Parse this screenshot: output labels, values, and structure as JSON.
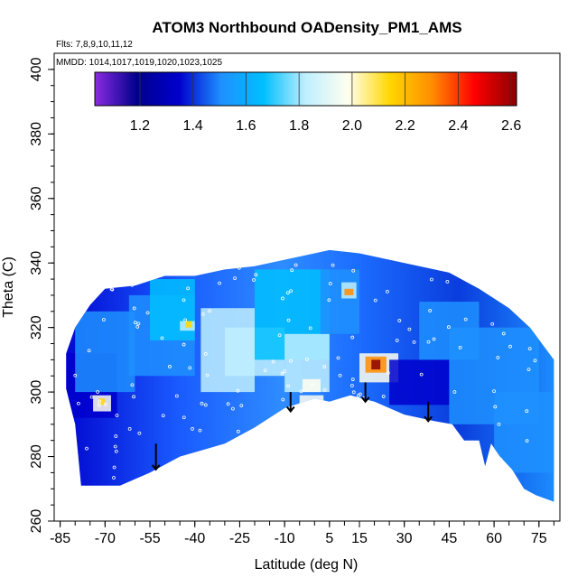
{
  "chart_data": {
    "type": "heatmap",
    "title": "ATOM3 Northbound OADensity_PM1_AMS",
    "flights_note": "Flts: 7,8,9,10,11,12",
    "dates_note": "MMDD: 1014,1017,1019,1020,1023,1025",
    "xlabel": "Latitude (deg N)",
    "ylabel": "Theta (C)",
    "xlim": [
      -87,
      82
    ],
    "ylim": [
      260,
      405
    ],
    "x_ticks": [
      -85,
      -70,
      -55,
      -40,
      -25,
      -10,
      5,
      15,
      30,
      45,
      60,
      75
    ],
    "y_ticks": [
      260,
      280,
      300,
      320,
      340,
      360,
      380,
      400
    ],
    "colorbar": {
      "range": [
        1.03,
        2.62
      ],
      "ticks": [
        1.2,
        1.4,
        1.6,
        1.8,
        2.0,
        2.2,
        2.4,
        2.6
      ],
      "colors": [
        "#8a2be2",
        "#00008b",
        "#0000cd",
        "#1e90ff",
        "#00bfff",
        "#bfefff",
        "#fffff0",
        "#ffd700",
        "#ff8c00",
        "#ff0000",
        "#8b0000"
      ]
    },
    "upper_boundary": [
      [
        -83,
        312
      ],
      [
        -80,
        320
      ],
      [
        -75,
        327
      ],
      [
        -70,
        332
      ],
      [
        -60,
        333
      ],
      [
        -50,
        336
      ],
      [
        -40,
        336
      ],
      [
        -30,
        338
      ],
      [
        -20,
        339
      ],
      [
        -10,
        341
      ],
      [
        0,
        343
      ],
      [
        5,
        344
      ],
      [
        15,
        343
      ],
      [
        25,
        341
      ],
      [
        35,
        339
      ],
      [
        45,
        337
      ],
      [
        55,
        332
      ],
      [
        65,
        326
      ],
      [
        72,
        320
      ],
      [
        76,
        315
      ],
      [
        80,
        310
      ]
    ],
    "lower_boundary": [
      [
        -83,
        301
      ],
      [
        -80,
        290
      ],
      [
        -78,
        271
      ],
      [
        -65,
        271
      ],
      [
        -55,
        275
      ],
      [
        -45,
        280
      ],
      [
        -30,
        284
      ],
      [
        -20,
        289
      ],
      [
        -10,
        295
      ],
      [
        0,
        298
      ],
      [
        5,
        297
      ],
      [
        12,
        299
      ],
      [
        20,
        297
      ],
      [
        30,
        293
      ],
      [
        40,
        291
      ],
      [
        46,
        290
      ],
      [
        50,
        285
      ],
      [
        55,
        285
      ],
      [
        57,
        277
      ],
      [
        59,
        284
      ],
      [
        62,
        280
      ],
      [
        66,
        276
      ],
      [
        70,
        270
      ],
      [
        74,
        268
      ],
      [
        80,
        266
      ]
    ],
    "cells": [
      {
        "x": [
          -84,
          -66
        ],
        "y": [
          292,
          312
        ],
        "value": 1.3
      },
      {
        "x": [
          -80,
          -60
        ],
        "y": [
          300,
          325
        ],
        "value": 1.55
      },
      {
        "x": [
          -74,
          -68
        ],
        "y": [
          294,
          299
        ],
        "value": 2.05
      },
      {
        "x": [
          -72,
          -70
        ],
        "y": [
          296,
          298
        ],
        "value": 2.2
      },
      {
        "x": [
          -62,
          -40
        ],
        "y": [
          305,
          330
        ],
        "value": 1.5
      },
      {
        "x": [
          -55,
          -40
        ],
        "y": [
          316,
          335
        ],
        "value": 1.6
      },
      {
        "x": [
          -45,
          -40
        ],
        "y": [
          319,
          322
        ],
        "value": 1.9
      },
      {
        "x": [
          -43,
          -41
        ],
        "y": [
          320,
          322
        ],
        "value": 2.15
      },
      {
        "x": [
          -38,
          -20
        ],
        "y": [
          300,
          326
        ],
        "value": 1.75
      },
      {
        "x": [
          -30,
          -10
        ],
        "y": [
          305,
          320
        ],
        "value": 1.85
      },
      {
        "x": [
          -20,
          5
        ],
        "y": [
          310,
          338
        ],
        "value": 1.6
      },
      {
        "x": [
          -10,
          5
        ],
        "y": [
          300,
          318
        ],
        "value": 1.85
      },
      {
        "x": [
          -4,
          2
        ],
        "y": [
          300,
          304
        ],
        "value": 2.0
      },
      {
        "x": [
          -5,
          3
        ],
        "y": [
          296,
          299
        ],
        "value": 1.95
      },
      {
        "x": [
          2,
          15
        ],
        "y": [
          318,
          338
        ],
        "value": 1.45
      },
      {
        "x": [
          9,
          14
        ],
        "y": [
          329,
          334
        ],
        "value": 1.9
      },
      {
        "x": [
          10,
          13
        ],
        "y": [
          330,
          332
        ],
        "value": 2.25
      },
      {
        "x": [
          15,
          28
        ],
        "y": [
          303,
          312
        ],
        "value": 1.95
      },
      {
        "x": [
          17,
          24
        ],
        "y": [
          306,
          311
        ],
        "value": 2.25
      },
      {
        "x": [
          19,
          22
        ],
        "y": [
          307,
          310
        ],
        "value": 2.55
      },
      {
        "x": [
          25,
          45
        ],
        "y": [
          296,
          310
        ],
        "value": 1.35
      },
      {
        "x": [
          35,
          55
        ],
        "y": [
          310,
          328
        ],
        "value": 1.5
      },
      {
        "x": [
          45,
          75
        ],
        "y": [
          290,
          320
        ],
        "value": 1.45
      },
      {
        "x": [
          60,
          80
        ],
        "y": [
          275,
          300
        ],
        "value": 1.55
      }
    ],
    "arrows": [
      {
        "x": -53,
        "y_top": 284,
        "y_bottom": 276
      },
      {
        "x": -8,
        "y_top": 300,
        "y_bottom": 294
      },
      {
        "x": 17,
        "y_top": 303,
        "y_bottom": 297
      },
      {
        "x": 38,
        "y_top": 297,
        "y_bottom": 291
      }
    ]
  }
}
